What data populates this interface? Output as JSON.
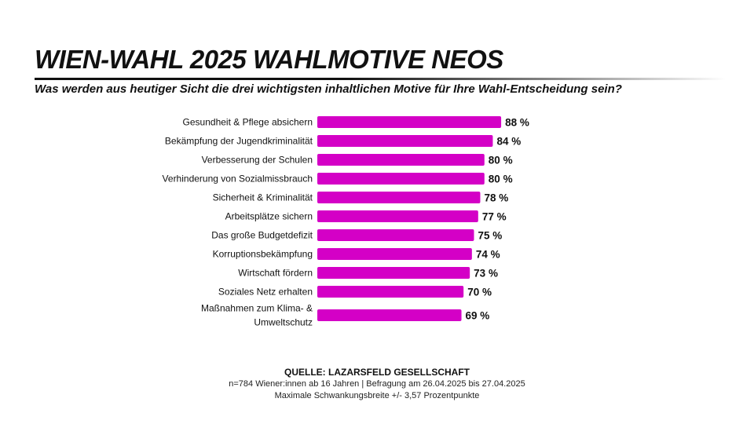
{
  "header": {
    "title": "WIEN-WAHL 2025 WAHLMOTIVE NEOS",
    "subtitle": "Was werden aus heutiger Sicht die drei wichtigsten inhaltlichen Motive für Ihre Wahl-Entscheidung sein?"
  },
  "chart_data": {
    "type": "bar",
    "orientation": "horizontal",
    "categories": [
      "Gesundheit & Pflege absichern",
      "Bekämpfung der Jugendkriminalität",
      "Verbesserung der Schulen",
      "Verhinderung von Sozialmissbrauch",
      "Sicherheit & Kriminalität",
      "Arbeitsplätze sichern",
      "Das große Budgetdefizit",
      "Korruptionsbekämpfung",
      "Wirtschaft fördern",
      "Soziales Netz erhalten",
      "Maßnahmen zum Klima- & Umweltschutz"
    ],
    "values": [
      88,
      84,
      80,
      80,
      78,
      77,
      75,
      74,
      73,
      70,
      69
    ],
    "value_labels": [
      "88 %",
      "84 %",
      "80 %",
      "80 %",
      "78 %",
      "77 %",
      "75 %",
      "74 %",
      "73 %",
      "70 %",
      "69 %"
    ],
    "xlim": [
      0,
      100
    ],
    "grid": false,
    "legend": "none",
    "bar_color": "#d400c6"
  },
  "footer": {
    "source": "QUELLE: LAZARSFELD GESELLSCHAFT",
    "note1": "n=784 Wiener:innen ab 16 Jahren | Befragung am 26.04.2025 bis 27.04.2025",
    "note2": "Maximale Schwankungsbreite +/- 3,57 Prozentpunkte"
  }
}
